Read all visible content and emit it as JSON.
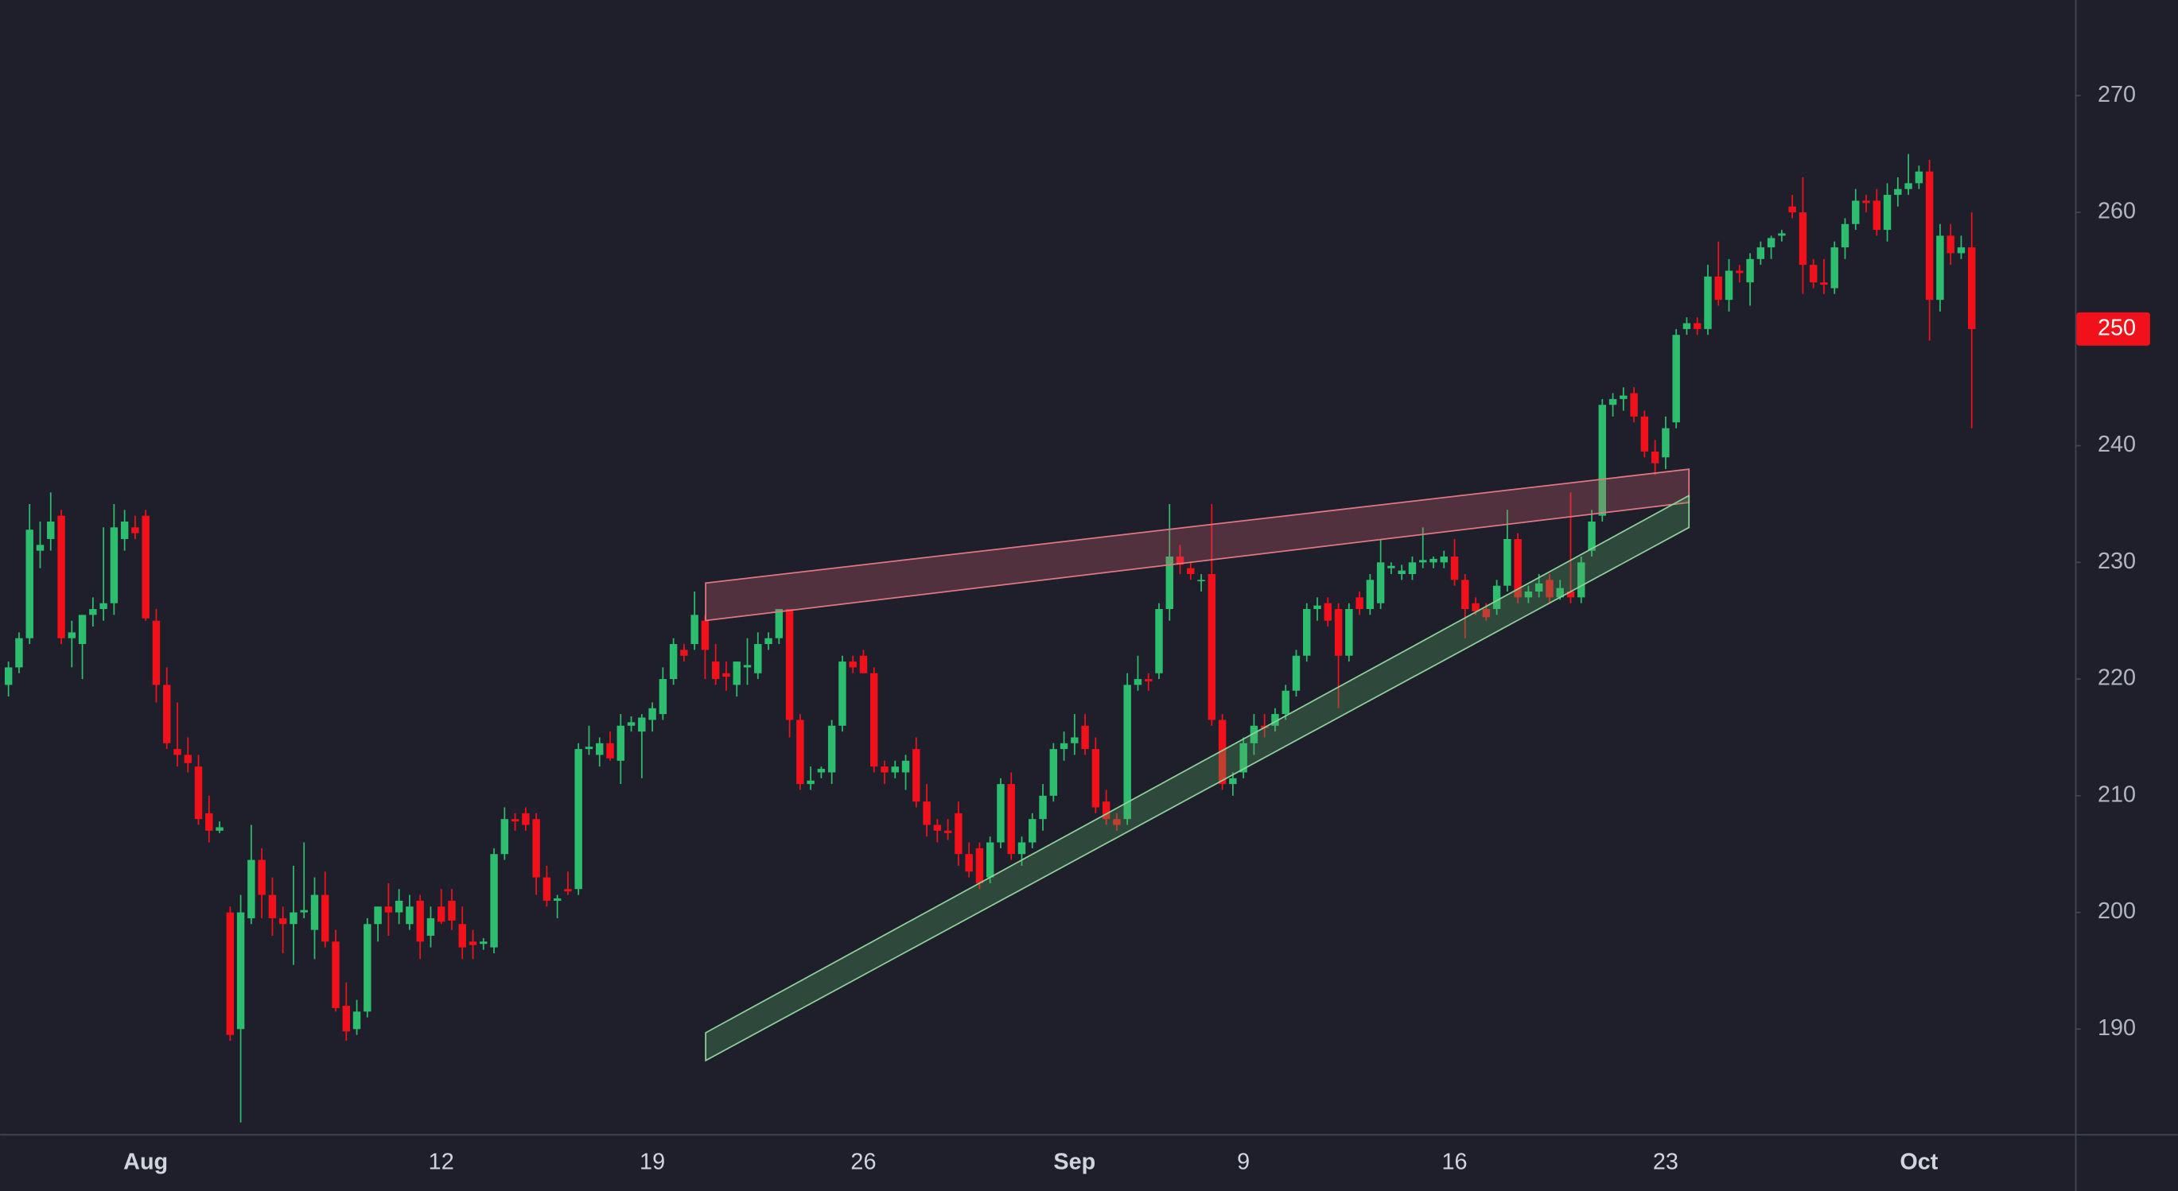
{
  "chart_data": {
    "type": "candlestick",
    "up_color": "#2dbd6e",
    "down_color": "#f2111a",
    "grid": false,
    "ylim": [
      181,
      278.2
    ],
    "yticks": [
      190,
      200,
      210,
      220,
      230,
      240,
      250,
      260,
      270
    ],
    "price_label": 250,
    "categories": [
      null,
      null,
      null,
      null,
      null,
      null,
      null,
      null,
      null,
      null,
      null,
      null,
      null,
      "Aug",
      null,
      null,
      null,
      null,
      null,
      null,
      null,
      null,
      null,
      null,
      null,
      null,
      null,
      null,
      null,
      null,
      null,
      null,
      null,
      null,
      null,
      null,
      null,
      null,
      null,
      null,
      null,
      "12",
      null,
      null,
      null,
      null,
      null,
      null,
      null,
      null,
      null,
      null,
      null,
      null,
      null,
      null,
      null,
      null,
      null,
      null,
      null,
      "19",
      null,
      null,
      null,
      null,
      null,
      null,
      null,
      null,
      null,
      null,
      null,
      null,
      null,
      null,
      null,
      null,
      null,
      null,
      null,
      "26",
      null,
      null,
      null,
      null,
      null,
      null,
      null,
      null,
      null,
      null,
      null,
      null,
      null,
      null,
      null,
      null,
      null,
      null,
      null,
      "Sep",
      null,
      null,
      null,
      null,
      null,
      null,
      null,
      null,
      null,
      null,
      null,
      null,
      null,
      null,
      null,
      "9",
      null,
      null,
      null,
      null,
      null,
      null,
      null,
      null,
      null,
      null,
      null,
      null,
      null,
      null,
      null,
      null,
      null,
      null,
      null,
      "16",
      null,
      null,
      null,
      null,
      null,
      null,
      null,
      null,
      null,
      null,
      null,
      null,
      null,
      null,
      null,
      null,
      null,
      null,
      null,
      "23",
      null,
      null,
      null,
      null,
      null,
      null,
      null,
      null,
      null,
      null,
      null,
      null,
      null,
      null,
      null,
      null,
      null,
      null,
      null,
      null,
      null,
      null,
      null,
      "Oct",
      null,
      null,
      null,
      null,
      null
    ],
    "ohlc": [
      [
        219.5,
        221.5,
        218.5,
        221
      ],
      [
        221,
        224,
        220.5,
        223.5
      ],
      [
        223.5,
        235,
        223,
        232.8
      ],
      [
        231,
        233.5,
        229.5,
        231.5
      ],
      [
        232,
        236,
        231,
        233.5
      ],
      [
        234,
        234.5,
        223,
        223.5
      ],
      [
        223.5,
        225,
        221,
        224
      ],
      [
        223,
        225.5,
        220,
        225.5
      ],
      [
        225.5,
        227,
        224.5,
        226
      ],
      [
        226,
        233,
        225,
        226.5
      ],
      [
        226.5,
        235,
        225.5,
        233
      ],
      [
        232,
        234.5,
        231,
        233.5
      ],
      [
        233,
        234,
        232,
        232.5
      ],
      [
        234,
        234.5,
        225,
        225.2
      ],
      [
        225,
        226,
        218,
        219.5
      ],
      [
        219.5,
        221,
        214,
        214.5
      ],
      [
        214,
        218,
        212.5,
        213.5
      ],
      [
        213.5,
        215,
        212,
        212.8
      ],
      [
        212.5,
        213.5,
        207.5,
        208
      ],
      [
        208.5,
        210,
        206,
        207
      ],
      [
        207,
        207.8,
        206.8,
        207.3
      ],
      [
        200,
        200.5,
        189,
        189.5
      ],
      [
        190,
        201.5,
        182,
        200
      ],
      [
        199.5,
        207.5,
        199,
        204.5
      ],
      [
        204.5,
        205.5,
        199.5,
        201.5
      ],
      [
        201.5,
        203,
        198,
        199.5
      ],
      [
        199.5,
        200.5,
        196.5,
        199
      ],
      [
        199,
        204,
        195.5,
        200
      ],
      [
        200,
        206,
        199.5,
        200.2
      ],
      [
        198.5,
        203,
        196,
        201.5
      ],
      [
        201.5,
        203.5,
        197,
        197.5
      ],
      [
        197.5,
        198.5,
        191.5,
        191.8
      ],
      [
        192,
        194,
        189,
        189.8
      ],
      [
        190,
        192.5,
        189.5,
        191.5
      ],
      [
        191.5,
        199.5,
        191,
        199
      ],
      [
        199,
        200.5,
        197.5,
        200.5
      ],
      [
        200.5,
        202.5,
        198,
        200
      ],
      [
        200,
        202,
        199,
        201
      ],
      [
        199,
        201.5,
        198.5,
        200.5
      ],
      [
        201,
        201.5,
        196,
        197.5
      ],
      [
        198,
        200.5,
        197,
        199.5
      ],
      [
        200.5,
        202,
        199,
        199.2
      ],
      [
        201,
        202,
        198.5,
        199.3
      ],
      [
        199,
        200.5,
        196,
        197
      ],
      [
        197.5,
        198.5,
        196,
        197.2
      ],
      [
        197.3,
        197.8,
        196.8,
        197.5
      ],
      [
        197,
        205.5,
        196.5,
        205
      ],
      [
        205,
        209,
        204.5,
        208
      ],
      [
        208,
        208.5,
        207,
        207.8
      ],
      [
        208.5,
        209,
        207,
        207.5
      ],
      [
        208,
        208.5,
        201.5,
        203
      ],
      [
        203,
        204,
        200.5,
        201
      ],
      [
        201,
        201.5,
        199.5,
        201.2
      ],
      [
        202,
        203.5,
        201.5,
        201.8
      ],
      [
        202,
        214.5,
        201.5,
        214
      ],
      [
        214,
        216,
        213.5,
        214.2
      ],
      [
        213.5,
        215,
        212.5,
        214.5
      ],
      [
        214.5,
        215.5,
        213,
        213.2
      ],
      [
        213,
        217,
        211,
        216
      ],
      [
        216,
        216.8,
        215.5,
        216.3
      ],
      [
        215.5,
        217,
        211.5,
        216.7
      ],
      [
        216.5,
        218,
        215.5,
        217.5
      ],
      [
        217,
        221,
        216.5,
        220
      ],
      [
        220,
        223.5,
        219.5,
        223
      ],
      [
        222.5,
        223,
        221.5,
        222
      ],
      [
        223,
        227.5,
        222.5,
        225.5
      ],
      [
        225,
        225.5,
        220,
        222.5
      ],
      [
        221.5,
        223,
        219.5,
        220
      ],
      [
        220.5,
        221.5,
        219,
        220.2
      ],
      [
        219.5,
        221.5,
        218.5,
        221.5
      ],
      [
        221,
        223.5,
        219.5,
        221.2
      ],
      [
        220.5,
        224,
        220,
        223
      ],
      [
        223,
        224,
        222.5,
        223.5
      ],
      [
        223.5,
        226,
        223,
        226
      ],
      [
        226,
        226,
        215,
        216.5
      ],
      [
        216.5,
        217,
        210.5,
        211
      ],
      [
        211,
        212.5,
        210.5,
        211.3
      ],
      [
        212,
        212.5,
        211.5,
        212.3
      ],
      [
        212,
        216.5,
        211,
        216
      ],
      [
        216,
        222,
        215.5,
        221.5
      ],
      [
        221.5,
        222,
        220.5,
        221
      ],
      [
        222,
        222.5,
        220.5,
        220.5
      ],
      [
        220.5,
        221,
        212,
        212.5
      ],
      [
        212.5,
        213,
        211,
        212
      ],
      [
        212,
        213,
        211.5,
        212.5
      ],
      [
        212,
        213.5,
        210.5,
        213
      ],
      [
        214,
        215,
        209,
        209.5
      ],
      [
        209.5,
        211,
        206.5,
        207.5
      ],
      [
        207.5,
        208,
        206,
        207
      ],
      [
        207,
        208,
        206.2,
        206.8
      ],
      [
        208.5,
        209.5,
        204,
        205
      ],
      [
        205,
        206,
        203,
        203.5
      ],
      [
        205.5,
        206,
        202,
        202.5
      ],
      [
        203,
        206.5,
        202.5,
        206
      ],
      [
        206,
        211.5,
        205.5,
        211
      ],
      [
        211,
        212,
        204.5,
        205
      ],
      [
        205,
        206.5,
        204,
        206
      ],
      [
        206,
        208.5,
        205.5,
        208
      ],
      [
        208,
        211,
        207,
        210
      ],
      [
        210,
        214.5,
        209.5,
        214
      ],
      [
        214,
        215.5,
        213,
        214.5
      ],
      [
        214.5,
        217,
        213.5,
        215
      ],
      [
        216,
        217,
        213.5,
        214
      ],
      [
        214,
        215,
        208.5,
        209
      ],
      [
        209.5,
        210.5,
        207.5,
        208
      ],
      [
        208,
        208.5,
        207,
        207.5
      ],
      [
        208,
        220.5,
        207.5,
        219.5
      ],
      [
        219.5,
        222,
        219,
        220
      ],
      [
        220,
        220.5,
        219,
        219.8
      ],
      [
        220.5,
        226.5,
        220,
        226
      ],
      [
        226,
        235,
        225,
        230.5
      ],
      [
        230.5,
        231.5,
        229,
        229.8
      ],
      [
        229.5,
        230,
        228.5,
        229
      ],
      [
        228.5,
        229,
        227.5,
        228.5
      ],
      [
        229,
        235,
        216,
        216.5
      ],
      [
        216.5,
        217,
        210.5,
        211
      ],
      [
        211,
        212,
        210,
        211.5
      ],
      [
        212,
        215,
        211.5,
        214.5
      ],
      [
        214.5,
        217,
        213.5,
        216
      ],
      [
        216,
        217,
        215,
        215.8
      ],
      [
        216,
        217.5,
        215.5,
        217
      ],
      [
        217,
        219.5,
        216.5,
        219
      ],
      [
        219,
        222.5,
        218.5,
        222
      ],
      [
        222,
        226.5,
        221.5,
        226
      ],
      [
        226,
        227,
        225,
        226.3
      ],
      [
        226.5,
        227,
        224.5,
        225
      ],
      [
        226,
        226.5,
        217.5,
        222
      ],
      [
        222,
        226.5,
        221.5,
        226
      ],
      [
        227,
        227.5,
        225.5,
        226
      ],
      [
        226,
        229,
        225.5,
        228.5
      ],
      [
        226.5,
        232,
        226,
        230
      ],
      [
        229.5,
        230,
        229,
        229.7
      ],
      [
        229,
        229.8,
        228.5,
        229.3
      ],
      [
        229,
        230.5,
        228.5,
        230
      ],
      [
        230,
        233,
        229.5,
        230.2
      ],
      [
        230,
        230.5,
        229.5,
        230.3
      ],
      [
        230,
        231,
        229.5,
        230.5
      ],
      [
        230.5,
        232,
        228,
        228.5
      ],
      [
        228.5,
        229,
        223.5,
        226
      ],
      [
        226.5,
        227,
        225.5,
        225.8
      ],
      [
        226,
        226.5,
        225,
        225.3
      ],
      [
        226,
        228.5,
        225.5,
        228
      ],
      [
        228,
        234.5,
        227.5,
        232
      ],
      [
        232,
        232.5,
        226.5,
        227
      ],
      [
        227,
        228,
        226.5,
        227.5
      ],
      [
        227.5,
        229,
        227,
        228.2
      ],
      [
        228.5,
        229,
        226.5,
        227
      ],
      [
        227,
        228.5,
        226.8,
        227.8
      ],
      [
        227.5,
        236,
        226.5,
        227
      ],
      [
        227,
        230.5,
        226.5,
        230
      ],
      [
        231,
        234.5,
        230.5,
        233.5
      ],
      [
        234,
        244,
        233.5,
        243.5
      ],
      [
        243.5,
        244.5,
        242.5,
        244
      ],
      [
        244,
        245,
        243,
        244.3
      ],
      [
        244.5,
        245,
        242,
        242.5
      ],
      [
        242.5,
        243,
        239,
        239.5
      ],
      [
        239.5,
        240.5,
        237.5,
        238.5
      ],
      [
        239,
        242.5,
        238,
        241.5
      ],
      [
        242,
        250,
        241.5,
        249.5
      ],
      [
        250,
        251,
        249.5,
        250.5
      ],
      [
        250.5,
        251,
        249.5,
        250
      ],
      [
        250,
        255.5,
        249.5,
        254.5
      ],
      [
        254.5,
        257.5,
        252,
        252.5
      ],
      [
        252.5,
        256,
        251.5,
        255
      ],
      [
        255,
        255.5,
        254,
        254.8
      ],
      [
        254,
        256.5,
        252,
        256
      ],
      [
        256,
        257.5,
        255.5,
        257
      ],
      [
        257,
        258,
        256,
        257.8
      ],
      [
        258,
        258.5,
        257.5,
        258.2
      ],
      [
        260.5,
        261.5,
        259.5,
        260
      ],
      [
        260,
        263,
        253,
        255.5
      ],
      [
        255.5,
        256,
        253.5,
        254
      ],
      [
        254,
        256,
        253,
        253.8
      ],
      [
        253.5,
        257.5,
        253,
        257
      ],
      [
        257,
        259.5,
        256,
        259
      ],
      [
        259,
        262,
        258.5,
        261
      ],
      [
        261,
        261.5,
        260,
        260.8
      ],
      [
        261,
        262,
        258,
        258.5
      ],
      [
        258.5,
        262.5,
        257.5,
        261.5
      ],
      [
        261.5,
        263,
        260.5,
        262
      ],
      [
        262,
        265,
        261.5,
        262.5
      ],
      [
        262.5,
        264,
        262,
        263.5
      ],
      [
        263.5,
        264.5,
        249,
        252.5
      ],
      [
        252.5,
        259,
        251.5,
        258
      ],
      [
        258,
        259,
        255.5,
        256.5
      ],
      [
        256.5,
        258,
        256,
        257
      ],
      [
        257,
        260,
        241.5,
        250
      ]
    ]
  }
}
